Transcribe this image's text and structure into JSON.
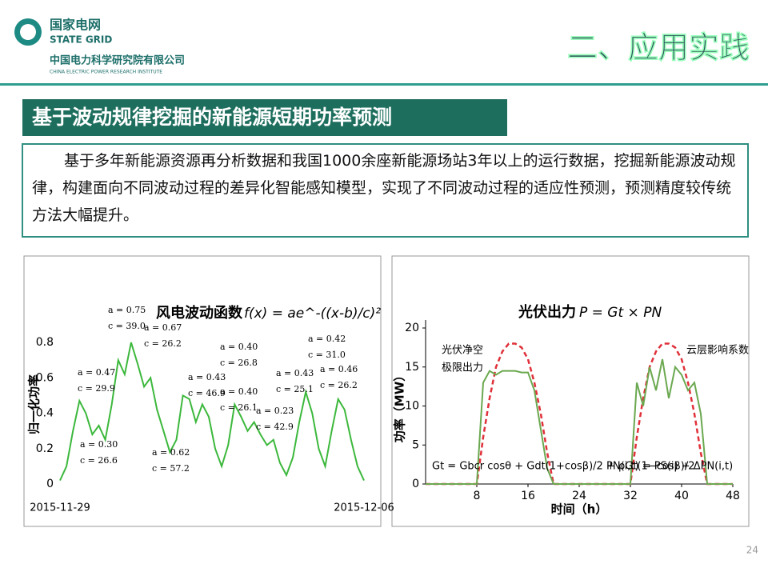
{
  "header": {
    "org": "国家电网",
    "org_en": "STATE GRID",
    "institute": "中国电力科学研究院有限公司",
    "institute_en": "CHINA ELECTRIC POWER RESEARCH INSTITUTE",
    "section": "二、应用实践"
  },
  "section_title": "基于波动规律挖掘的新能源短期功率预测",
  "body": "基于多年新能源资源再分析数据和我国1000余座新能源场站3年以上的运行数据，挖掘新能源波动规律，构建面向不同波动过程的差异化智能感知模型，实现了不同波动过程的适应性预测，预测精度较传统方法大幅提升。",
  "page_number": "24",
  "chart_data": [
    {
      "type": "line",
      "title": "风电波动函数",
      "formula": "f(x) = ae^-((x-b)/c)²",
      "ylabel": "归一化功率",
      "categories": [
        "2015-11-29",
        null,
        null,
        null,
        null,
        null,
        null,
        null,
        null,
        null,
        null,
        null,
        null,
        null,
        null,
        null,
        null,
        null,
        null,
        null,
        null,
        null,
        null,
        null,
        null,
        null,
        null,
        null,
        null,
        null,
        null,
        null,
        null,
        null,
        null,
        null,
        null,
        null,
        null,
        null,
        null,
        null,
        null,
        null,
        null,
        null,
        null,
        "2015-12-06"
      ],
      "series": [
        {
          "color": "#3cb83c",
          "values": [
            0.02,
            0.1,
            0.3,
            0.47,
            0.4,
            0.28,
            0.33,
            0.25,
            0.45,
            0.7,
            0.62,
            0.8,
            0.68,
            0.55,
            0.6,
            0.42,
            0.3,
            0.18,
            0.25,
            0.5,
            0.48,
            0.35,
            0.45,
            0.38,
            0.2,
            0.1,
            0.22,
            0.45,
            0.38,
            0.3,
            0.35,
            0.28,
            0.22,
            0.25,
            0.12,
            0.05,
            0.15,
            0.35,
            0.52,
            0.4,
            0.2,
            0.1,
            0.3,
            0.48,
            0.42,
            0.25,
            0.1,
            0.02
          ]
        }
      ],
      "ylim": [
        0,
        0.9
      ],
      "yticks": [
        0,
        0.2,
        0.4,
        0.6,
        0.8
      ],
      "annotations": [
        "a = 0.47",
        "c = 29.9",
        "a = 0.75",
        "c = 39.0",
        "a = 0.67",
        "c = 26.2",
        "a = 0.30",
        "c = 26.6",
        "a = 0.62",
        "c = 57.2",
        "a = 0.43",
        "c = 46.9",
        "a = 0.40",
        "c = 26.8",
        "a = 0.40",
        "c = 26.1",
        "a = 0.23",
        "c = 42.9",
        "a = 0.43",
        "c = 25.1",
        "a = 0.42",
        "c = 31.0",
        "a = 0.46",
        "c = 26.2"
      ]
    },
    {
      "type": "line",
      "title": "光伏出力",
      "formula": "P = Gt × PN",
      "xlabel": "时间（h）",
      "ylabel": "功率（MW）",
      "x": [
        0,
        1,
        2,
        3,
        4,
        5,
        6,
        7,
        8,
        9,
        10,
        11,
        12,
        13,
        14,
        15,
        16,
        17,
        18,
        19,
        20,
        21,
        22,
        23,
        24,
        25,
        26,
        27,
        28,
        29,
        30,
        31,
        32,
        33,
        34,
        35,
        36,
        37,
        38,
        39,
        40,
        41,
        42,
        43,
        44,
        45,
        46,
        47,
        48
      ],
      "series": [
        {
          "color": "#e0303a",
          "dash": true,
          "values": [
            0,
            0,
            0,
            0,
            0,
            0,
            0,
            0,
            0,
            6,
            11,
            15,
            17,
            18,
            18,
            17.5,
            16,
            13,
            9,
            4,
            0,
            0,
            0,
            0,
            0,
            0,
            0,
            0,
            0,
            0,
            0,
            0,
            0,
            6,
            11,
            15,
            17,
            18,
            18,
            17.5,
            16,
            13,
            9,
            4,
            0,
            0,
            0,
            0,
            0
          ]
        },
        {
          "color": "#6aa84f",
          "values": [
            0,
            0,
            0,
            0,
            0,
            0,
            0,
            0,
            0,
            13,
            14.5,
            14,
            14.5,
            14.5,
            14.5,
            14.3,
            14.3,
            12,
            7,
            2,
            0,
            0,
            0,
            0,
            0,
            0,
            0,
            0,
            0,
            0,
            0,
            0,
            0,
            13,
            10,
            15,
            12,
            16,
            11,
            15,
            14,
            12,
            13,
            9,
            0,
            0,
            0,
            0,
            0
          ]
        }
      ],
      "xlim": [
        0,
        48
      ],
      "xticks": [
        8,
        16,
        24,
        32,
        40,
        48
      ],
      "ylim": [
        0,
        20
      ],
      "yticks": [
        0,
        5,
        10,
        15,
        20
      ],
      "annotations": [
        "光伏净空",
        "极限出力",
        "云层影响系数",
        "Gt = Gbcr cosθ + Gdt(1+cosβ)/2 + ρGt(1−cosβ)/2",
        "PN(i,t) = PS(i) + ΔPN(i,t)"
      ]
    }
  ]
}
